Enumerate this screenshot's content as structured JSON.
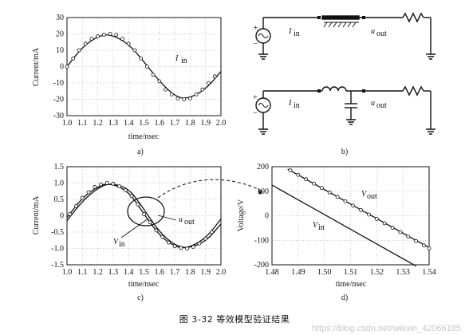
{
  "figure": {
    "caption": "图 3-32   等效模型验证结果",
    "watermark": "https://blog.csdn.net/weixin_42066185"
  },
  "panels": {
    "a": {
      "label": "a)"
    },
    "b": {
      "label": "b)",
      "top_labels": [
        "I",
        "in",
        "u",
        "out"
      ],
      "bottom_labels": [
        "I",
        "in",
        "u",
        "out"
      ]
    },
    "c": {
      "label": "c)"
    },
    "d": {
      "label": "d)"
    }
  },
  "chart_data": [
    {
      "id": "a",
      "type": "line",
      "xlabel": "time/nsec",
      "ylabel": "Current/mA",
      "xlim": [
        1.0,
        2.0
      ],
      "ylim": [
        -30,
        30
      ],
      "xticks": [
        "1.0",
        "1.1",
        "1.2",
        "1.3",
        "1.4",
        "1.5",
        "1.6",
        "1.7",
        "1.8",
        "1.9",
        "2.0"
      ],
      "yticks": [
        "30",
        "20",
        "10",
        "0",
        "-10",
        "-20",
        "-30"
      ],
      "annotations": [
        {
          "main": "I",
          "sub": "in"
        }
      ],
      "series": [
        {
          "style": "solid",
          "x": [
            1.0,
            1.1,
            1.2,
            1.28,
            1.4,
            1.5,
            1.6,
            1.7,
            1.78,
            1.9,
            2.0
          ],
          "y": [
            0,
            12,
            18.5,
            20,
            14,
            3,
            -9,
            -18,
            -20,
            -14,
            -3
          ]
        },
        {
          "style": "circles",
          "x": [
            1.0,
            1.04,
            1.08,
            1.12,
            1.16,
            1.2,
            1.24,
            1.28,
            1.32,
            1.36,
            1.4,
            1.44,
            1.48,
            1.52,
            1.56,
            1.6,
            1.64,
            1.68,
            1.72,
            1.76,
            1.8,
            1.84,
            1.88,
            1.92,
            1.96
          ],
          "y": [
            0,
            5,
            10,
            14,
            17,
            18.5,
            19.5,
            20,
            19.5,
            17,
            14,
            10,
            5,
            0,
            -5,
            -9,
            -14,
            -17,
            -19.5,
            -20,
            -19.5,
            -17,
            -14,
            -10,
            -6
          ]
        }
      ]
    },
    {
      "id": "c",
      "type": "line",
      "xlabel": "time/nsec",
      "ylabel": "Current/mA",
      "xlim": [
        1.0,
        2.0
      ],
      "ylim": [
        -1.5,
        1.5
      ],
      "xticks": [
        "1.0",
        "1.1",
        "1.2",
        "1.3",
        "1.4",
        "1.5",
        "1.6",
        "1.7",
        "1.8",
        "1.9",
        "2.0"
      ],
      "yticks": [
        "1.5",
        "1.0",
        "0.5",
        "0",
        "-0.5",
        "-1.0",
        "-1.5"
      ],
      "annotations": [
        {
          "main": "u",
          "sub": "out"
        },
        {
          "main": "V",
          "sub": "in"
        }
      ],
      "series": [
        {
          "style": "solid",
          "x": [
            1.0,
            1.1,
            1.2,
            1.28,
            1.4,
            1.5,
            1.6,
            1.7,
            1.78,
            1.9,
            2.0
          ],
          "y": [
            -0.05,
            0.55,
            0.9,
            1.0,
            0.75,
            0.05,
            -0.6,
            -0.95,
            -1.0,
            -0.7,
            -0.1
          ]
        },
        {
          "style": "solid",
          "x": [
            1.0,
            1.1,
            1.2,
            1.28,
            1.4,
            1.5,
            1.6,
            1.7,
            1.78,
            1.9,
            2.0
          ],
          "y": [
            -0.15,
            0.45,
            0.85,
            1.0,
            0.85,
            0.2,
            -0.5,
            -0.9,
            -1.0,
            -0.8,
            -0.25
          ]
        },
        {
          "style": "circles",
          "x": [
            1.02,
            1.06,
            1.1,
            1.14,
            1.18,
            1.22,
            1.26,
            1.3,
            1.34,
            1.38,
            1.42,
            1.46,
            1.5,
            1.54,
            1.58,
            1.62,
            1.66,
            1.7,
            1.74,
            1.78,
            1.82,
            1.86,
            1.9,
            1.94
          ],
          "y": [
            0.05,
            0.3,
            0.55,
            0.72,
            0.88,
            0.96,
            1.0,
            0.98,
            0.9,
            0.78,
            0.6,
            0.35,
            0.05,
            -0.2,
            -0.45,
            -0.65,
            -0.82,
            -0.93,
            -0.98,
            -1.0,
            -0.95,
            -0.85,
            -0.7,
            -0.5
          ]
        }
      ]
    },
    {
      "id": "d",
      "type": "line",
      "xlabel": "time/nsec",
      "ylabel": "Voltage/V",
      "xlim": [
        1.48,
        1.54
      ],
      "ylim": [
        -200,
        200
      ],
      "xticks": [
        "1.48",
        "1.49",
        "1.50",
        "1.51",
        "1.52",
        "1.53",
        "1.54"
      ],
      "yticks": [
        "200",
        "100",
        "0",
        "-100",
        "-200"
      ],
      "annotations": [
        {
          "main": "V",
          "sub": "out"
        },
        {
          "main": "V",
          "sub": "in"
        }
      ],
      "series": [
        {
          "style": "solid",
          "x": [
            1.486,
            1.54
          ],
          "y": [
            190,
            -130
          ]
        },
        {
          "style": "solid",
          "x": [
            1.48,
            1.535
          ],
          "y": [
            125,
            -205
          ]
        },
        {
          "style": "circles",
          "x": [
            1.487,
            1.49,
            1.493,
            1.496,
            1.499,
            1.502,
            1.505,
            1.508,
            1.511,
            1.514,
            1.517,
            1.52,
            1.523,
            1.526,
            1.529,
            1.532,
            1.535,
            1.538,
            1.54
          ],
          "y": [
            185,
            167,
            149,
            131,
            113,
            95,
            77,
            59,
            41,
            23,
            5,
            -13,
            -31,
            -49,
            -67,
            -85,
            -103,
            -121,
            -133
          ]
        }
      ]
    }
  ]
}
